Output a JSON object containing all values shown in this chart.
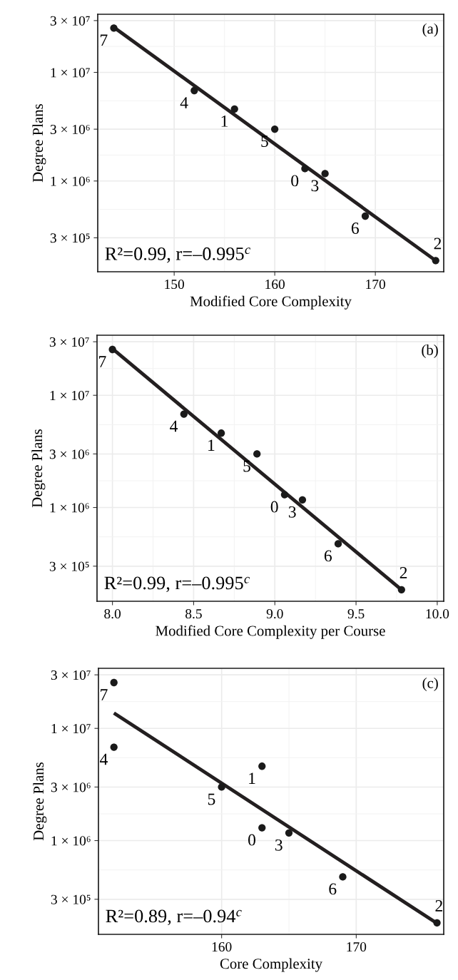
{
  "chart_data": [
    {
      "type": "scatter",
      "xlabel": "Modified Core Complexity",
      "ylabel": "Degree Plans",
      "log": "y",
      "grid": true,
      "xlim": [
        142.4,
        176.8
      ],
      "xticks": [
        150,
        160,
        170
      ],
      "ylim": [
        146000,
        34300000
      ],
      "yticks": [
        {
          "value": 300000,
          "label": "3 × 10⁵"
        },
        {
          "value": 1000000,
          "label": "1 × 10⁶"
        },
        {
          "value": 3000000,
          "label": "3 × 10⁶"
        },
        {
          "value": 10000000,
          "label": "1 × 10⁷"
        },
        {
          "value": 30000000,
          "label": "3 × 10⁷"
        }
      ],
      "series": [
        {
          "color": "#1a1a1a",
          "marker": "circle",
          "x": [
            144,
            152,
            156,
            160,
            163,
            165,
            169,
            176
          ],
          "values": [
            25600000,
            6800000,
            4600000,
            3000000,
            1300000,
            1170000,
            475000,
            185000
          ]
        },
        {
          "type": "line",
          "marker": "none",
          "color": "#231f20",
          "x": [
            144,
            176
          ],
          "values": [
            26000000,
            185000
          ]
        }
      ],
      "annotations": [
        "(a)",
        "R²=0.99, r=–0.995$^{c}$",
        {
          "text": "7",
          "x": 144,
          "y": 25600000
        },
        {
          "text": "4",
          "x": 152,
          "y": 6800000
        },
        {
          "text": "1",
          "x": 156,
          "y": 4600000
        },
        {
          "text": "5",
          "x": 160,
          "y": 3000000
        },
        {
          "text": "0",
          "x": 163,
          "y": 1300000
        },
        {
          "text": "3",
          "x": 165,
          "y": 1170000
        },
        {
          "text": "6",
          "x": 169,
          "y": 475000
        },
        {
          "text": "2",
          "x": 176,
          "y": 185000
        }
      ]
    },
    {
      "type": "scatter",
      "xlabel": "Modified Core Complexity per Course",
      "ylabel": "Degree Plans",
      "log": "y",
      "grid": true,
      "xlim": [
        7.905,
        10.04
      ],
      "xticks": [
        {
          "value": 8.0,
          "label": "8.0"
        },
        {
          "value": 8.5,
          "label": "8.5"
        },
        {
          "value": 9.0,
          "label": "9.0"
        },
        {
          "value": 9.5,
          "label": "9.5"
        },
        {
          "value": 10.0,
          "label": "10.0"
        }
      ],
      "ylim": [
        146000,
        34300000
      ],
      "yticks": [
        {
          "value": 300000,
          "label": "3 × 10⁵"
        },
        {
          "value": 1000000,
          "label": "1 × 10⁶"
        },
        {
          "value": 3000000,
          "label": "3 × 10⁶"
        },
        {
          "value": 10000000,
          "label": "1 × 10⁷"
        },
        {
          "value": 30000000,
          "label": "3 × 10⁷"
        }
      ],
      "series": [
        {
          "color": "#1a1a1a",
          "marker": "circle",
          "x": [
            8.0,
            8.44,
            8.67,
            8.89,
            9.06,
            9.17,
            9.39,
            9.78
          ],
          "values": [
            25600000,
            6800000,
            4600000,
            3000000,
            1300000,
            1170000,
            475000,
            185000
          ]
        },
        {
          "type": "line",
          "marker": "none",
          "color": "#231f20",
          "x": [
            8.0,
            9.78
          ],
          "values": [
            26000000,
            185000
          ]
        }
      ],
      "annotations": [
        "(b)",
        "R²=0.99, r=–0.995$^{c}$",
        {
          "text": "7",
          "x": 8.0,
          "y": 25600000
        },
        {
          "text": "4",
          "x": 8.44,
          "y": 6800000
        },
        {
          "text": "1",
          "x": 8.67,
          "y": 4600000
        },
        {
          "text": "5",
          "x": 8.89,
          "y": 3000000
        },
        {
          "text": "0",
          "x": 9.06,
          "y": 1300000
        },
        {
          "text": "3",
          "x": 9.17,
          "y": 1170000
        },
        {
          "text": "6",
          "x": 9.39,
          "y": 475000
        },
        {
          "text": "2",
          "x": 9.78,
          "y": 185000
        }
      ]
    },
    {
      "type": "scatter",
      "xlabel": "Core Complexity",
      "ylabel": "Degree Plans",
      "log": "y",
      "grid": true,
      "xlim": [
        150.85,
        176.5
      ],
      "xticks": [
        160,
        170
      ],
      "ylim": [
        146000,
        34300000
      ],
      "yticks": [
        {
          "value": 300000,
          "label": "3 × 10⁵"
        },
        {
          "value": 1000000,
          "label": "1 × 10⁶"
        },
        {
          "value": 3000000,
          "label": "3 × 10⁶"
        },
        {
          "value": 10000000,
          "label": "1 × 10⁷"
        },
        {
          "value": 30000000,
          "label": "3 × 10⁷"
        }
      ],
      "series": [
        {
          "color": "#1a1a1a",
          "marker": "circle",
          "x": [
            152,
            152,
            163,
            160,
            163,
            165,
            169,
            176
          ],
          "values": [
            25600000,
            6800000,
            4600000,
            3000000,
            1300000,
            1170000,
            475000,
            185000
          ]
        },
        {
          "type": "line",
          "marker": "none",
          "color": "#231f20",
          "x": [
            152,
            176
          ],
          "values": [
            13700000,
            183000
          ]
        }
      ],
      "annotations": [
        "(c)",
        "R²=0.89, r=–0.94$^{c}$",
        {
          "text": "7",
          "x": 152,
          "y": 25600000
        },
        {
          "text": "4",
          "x": 152,
          "y": 6800000
        },
        {
          "text": "1",
          "x": 163,
          "y": 4600000
        },
        {
          "text": "5",
          "x": 160,
          "y": 3000000
        },
        {
          "text": "0",
          "x": 163,
          "y": 1300000
        },
        {
          "text": "3",
          "x": 165,
          "y": 1170000
        },
        {
          "text": "6",
          "x": 169,
          "y": 475000
        },
        {
          "text": "2",
          "x": 176,
          "y": 185000
        }
      ]
    }
  ]
}
